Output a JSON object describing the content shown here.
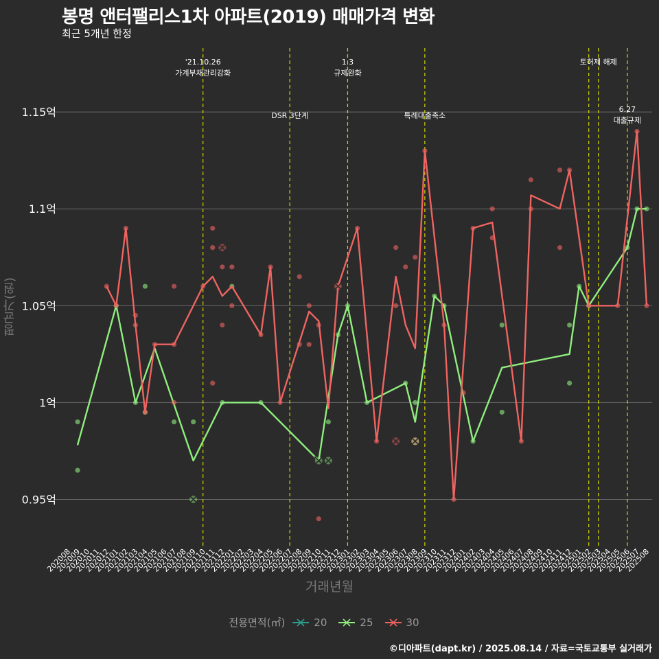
{
  "chart_data": {
    "type": "line",
    "title": "봉명 앤터팰리스1차 아파트(2019) 매매가격 변화",
    "subtitle": "최근 5개년 한정",
    "xlabel": "거래년월",
    "ylabel": "평균가(원)",
    "caption": "©디아파트(dapt.kr) / 2025.08.14 / 자료=국토교통부 실거래가",
    "x": [
      "202008",
      "202009",
      "202010",
      "202011",
      "202012",
      "202101",
      "202102",
      "202103",
      "202104",
      "202105",
      "202106",
      "202107",
      "202108",
      "202109",
      "202110",
      "202111",
      "202112",
      "202201",
      "202202",
      "202203",
      "202204",
      "202205",
      "202206",
      "202207",
      "202208",
      "202209",
      "202210",
      "202211",
      "202212",
      "202301",
      "202302",
      "202303",
      "202304",
      "202305",
      "202306",
      "202307",
      "202308",
      "202309",
      "202310",
      "202311",
      "202312",
      "202401",
      "202402",
      "202403",
      "202404",
      "202405",
      "202406",
      "202407",
      "202408",
      "202409",
      "202410",
      "202411",
      "202412",
      "202501",
      "202502",
      "202503",
      "202504",
      "202505",
      "202506",
      "202507",
      "202508"
    ],
    "ylim": [
      0.925,
      1.183
    ],
    "yticks": [
      0.95,
      1.0,
      1.05,
      1.1,
      1.15
    ],
    "ytick_labels": [
      "0.95억",
      "1억",
      "1.05억",
      "1.1억",
      "1.15억"
    ],
    "grid": true,
    "legend": {
      "title": "전용면적(㎡)",
      "position": "bottom",
      "items": [
        {
          "name": "20",
          "color": "#2a9d8f"
        },
        {
          "name": "25",
          "color": "#90ee7e"
        },
        {
          "name": "30",
          "color": "#ef6461"
        }
      ]
    },
    "series": [
      {
        "name": "25",
        "color": "#90ee7e",
        "line": [
          [
            "202009",
            0.978
          ],
          [
            "202101",
            1.05
          ],
          [
            "202103",
            1.0
          ],
          [
            "202105",
            1.028
          ],
          [
            "202109",
            0.97
          ],
          [
            "202112",
            1.0
          ],
          [
            "202204",
            1.0
          ],
          [
            "202210",
            0.97
          ],
          [
            "202212",
            1.035
          ],
          [
            "202301",
            1.05
          ],
          [
            "202303",
            1.0
          ],
          [
            "202307",
            1.01
          ],
          [
            "202308",
            0.99
          ],
          [
            "202310",
            1.055
          ],
          [
            "202311",
            1.05
          ],
          [
            "202402",
            0.98
          ],
          [
            "202405",
            1.018
          ],
          [
            "202412",
            1.025
          ],
          [
            "202501",
            1.06
          ],
          [
            "202502",
            1.05
          ],
          [
            "202506",
            1.08
          ],
          [
            "202507",
            1.1
          ],
          [
            "202508",
            1.1
          ]
        ],
        "points": [
          [
            "202009",
            0.99
          ],
          [
            "202009",
            0.965
          ],
          [
            "202101",
            1.05
          ],
          [
            "202103",
            1.0
          ],
          [
            "202104",
            1.06
          ],
          [
            "202104",
            0.995
          ],
          [
            "202107",
            0.99
          ],
          [
            "202109",
            0.99
          ],
          [
            "202112",
            1.0
          ],
          [
            "202201",
            1.06
          ],
          [
            "202204",
            1.0
          ],
          [
            "202211",
            0.99
          ],
          [
            "202212",
            1.035
          ],
          [
            "202301",
            1.05
          ],
          [
            "202303",
            1.0
          ],
          [
            "202307",
            1.01
          ],
          [
            "202308",
            1.0
          ],
          [
            "202310",
            1.055
          ],
          [
            "202311",
            1.05
          ],
          [
            "202402",
            0.98
          ],
          [
            "202405",
            1.04
          ],
          [
            "202405",
            0.995
          ],
          [
            "202412",
            1.04
          ],
          [
            "202412",
            1.01
          ],
          [
            "202501",
            1.06
          ],
          [
            "202502",
            1.05
          ],
          [
            "202506",
            1.08
          ],
          [
            "202507",
            1.1
          ],
          [
            "202508",
            1.1
          ]
        ],
        "highlights": [
          [
            "202109",
            0.95
          ],
          [
            "202210",
            0.97
          ],
          [
            "202211",
            0.97
          ]
        ]
      },
      {
        "name": "30",
        "color": "#ef6461",
        "line": [
          [
            "202012",
            1.06
          ],
          [
            "202101",
            1.05
          ],
          [
            "202102",
            1.09
          ],
          [
            "202103",
            1.04
          ],
          [
            "202104",
            0.995
          ],
          [
            "202105",
            1.03
          ],
          [
            "202107",
            1.03
          ],
          [
            "202110",
            1.06
          ],
          [
            "202111",
            1.065
          ],
          [
            "202112",
            1.055
          ],
          [
            "202201",
            1.06
          ],
          [
            "202204",
            1.035
          ],
          [
            "202205",
            1.07
          ],
          [
            "202206",
            1.0
          ],
          [
            "202209",
            1.047
          ],
          [
            "202210",
            1.042
          ],
          [
            "202211",
            0.997
          ],
          [
            "202212",
            1.06
          ],
          [
            "202302",
            1.09
          ],
          [
            "202304",
            0.98
          ],
          [
            "202306",
            1.065
          ],
          [
            "202307",
            1.04
          ],
          [
            "202308",
            1.028
          ],
          [
            "202309",
            1.13
          ],
          [
            "202311",
            1.04
          ],
          [
            "202312",
            0.95
          ],
          [
            "202402",
            1.09
          ],
          [
            "202404",
            1.093
          ],
          [
            "202407",
            0.98
          ],
          [
            "202408",
            1.107
          ],
          [
            "202411",
            1.1
          ],
          [
            "202412",
            1.12
          ],
          [
            "202502",
            1.05
          ],
          [
            "202505",
            1.05
          ],
          [
            "202507",
            1.14
          ],
          [
            "202508",
            1.05
          ]
        ],
        "points": [
          [
            "202012",
            1.06
          ],
          [
            "202101",
            1.05
          ],
          [
            "202102",
            1.09
          ],
          [
            "202103",
            1.045
          ],
          [
            "202103",
            1.04
          ],
          [
            "202104",
            0.995
          ],
          [
            "202105",
            1.03
          ],
          [
            "202107",
            1.06
          ],
          [
            "202107",
            1.03
          ],
          [
            "202107",
            1.0
          ],
          [
            "202110",
            1.06
          ],
          [
            "202111",
            1.09
          ],
          [
            "202111",
            1.08
          ],
          [
            "202111",
            1.01
          ],
          [
            "202112",
            1.07
          ],
          [
            "202112",
            1.04
          ],
          [
            "202201",
            1.07
          ],
          [
            "202201",
            1.05
          ],
          [
            "202204",
            1.035
          ],
          [
            "202205",
            1.07
          ],
          [
            "202206",
            1.0
          ],
          [
            "202208",
            1.065
          ],
          [
            "202208",
            1.03
          ],
          [
            "202209",
            1.05
          ],
          [
            "202209",
            1.03
          ],
          [
            "202210",
            1.04
          ],
          [
            "202210",
            0.94
          ],
          [
            "202212",
            1.06
          ],
          [
            "202302",
            1.09
          ],
          [
            "202304",
            0.98
          ],
          [
            "202306",
            1.08
          ],
          [
            "202306",
            1.05
          ],
          [
            "202307",
            1.07
          ],
          [
            "202308",
            1.075
          ],
          [
            "202309",
            1.13
          ],
          [
            "202311",
            1.04
          ],
          [
            "202312",
            0.95
          ],
          [
            "202401",
            1.005
          ],
          [
            "202402",
            1.09
          ],
          [
            "202404",
            1.1
          ],
          [
            "202404",
            1.085
          ],
          [
            "202407",
            0.98
          ],
          [
            "202408",
            1.115
          ],
          [
            "202408",
            1.1
          ],
          [
            "202411",
            1.12
          ],
          [
            "202411",
            1.08
          ],
          [
            "202412",
            1.12
          ],
          [
            "202502",
            1.05
          ],
          [
            "202505",
            1.05
          ],
          [
            "202507",
            1.14
          ],
          [
            "202508",
            1.05
          ]
        ],
        "highlights": [
          [
            "202112",
            1.08
          ],
          [
            "202212",
            1.06
          ],
          [
            "202306",
            0.98
          ]
        ]
      }
    ],
    "mixed_highlights": [
      [
        "202308",
        0.98
      ]
    ],
    "annotations": [
      {
        "x": "202110",
        "lines": [
          "'21.10.26",
          "가계부채관리강화"
        ],
        "row": "top"
      },
      {
        "x": "202207",
        "lines": [
          "DSR 3단계"
        ],
        "row": "mid"
      },
      {
        "x": "202301",
        "lines": [
          "1.3",
          "규제완화"
        ],
        "row": "top"
      },
      {
        "x": "202309",
        "lines": [
          "특례대출축소"
        ],
        "row": "mid"
      },
      {
        "x": "202502",
        "lines": [],
        "row": "top"
      },
      {
        "x": "202503",
        "lines": [
          "토허제 해제"
        ],
        "row": "top"
      },
      {
        "x": "202506",
        "lines": [
          "6.27",
          "대출규제"
        ],
        "row": "mid"
      }
    ]
  }
}
